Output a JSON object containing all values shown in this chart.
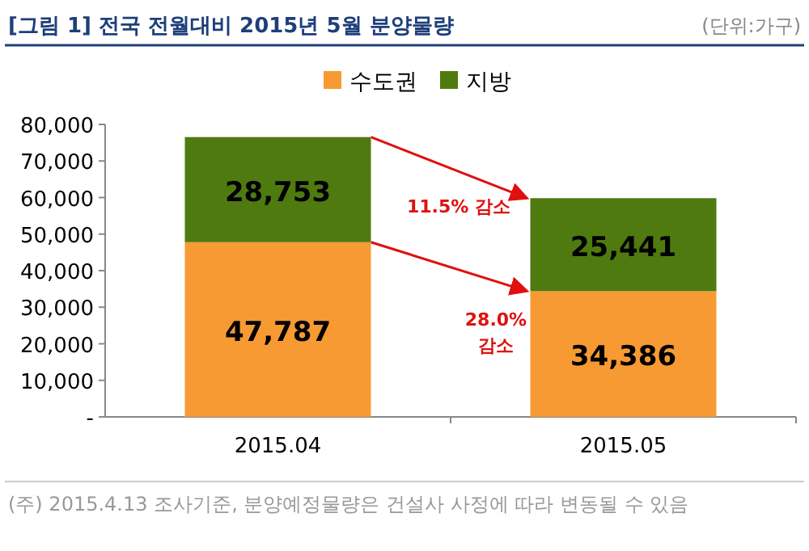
{
  "chart_data": {
    "type": "bar",
    "title": "[그림 1] 전국 전월대비 2015년 5월 분양물량",
    "subtitle": "(단위:가구)",
    "categories": [
      "2015.04",
      "2015.05"
    ],
    "stacked": true,
    "legend": "top",
    "series": [
      {
        "name": "수도권",
        "color": "#f79a33",
        "values": [
          47787,
          34386
        ],
        "value_labels": [
          "47,787",
          "34,386"
        ]
      },
      {
        "name": "지방",
        "color": "#4f7a10",
        "values": [
          28753,
          25441
        ],
        "value_labels": [
          "28,753",
          "25,441"
        ]
      }
    ],
    "ylim": [
      0,
      80000
    ],
    "yticks": [
      {
        "value": 0,
        "label": "-"
      },
      {
        "value": 10000,
        "label": "10,000"
      },
      {
        "value": 20000,
        "label": "20,000"
      },
      {
        "value": 30000,
        "label": "30,000"
      },
      {
        "value": 40000,
        "label": "40,000"
      },
      {
        "value": 50000,
        "label": "50,000"
      },
      {
        "value": 60000,
        "label": "60,000"
      },
      {
        "value": 70000,
        "label": "70,000"
      },
      {
        "value": 80000,
        "label": "80,000"
      }
    ],
    "annotations": [
      "11.5% 감소",
      "28.0%\n감소",
      "(주) 2015.4.13 조사기준, 분양예정물량은 건설사 사정에 따라 변동될 수 있음"
    ]
  }
}
